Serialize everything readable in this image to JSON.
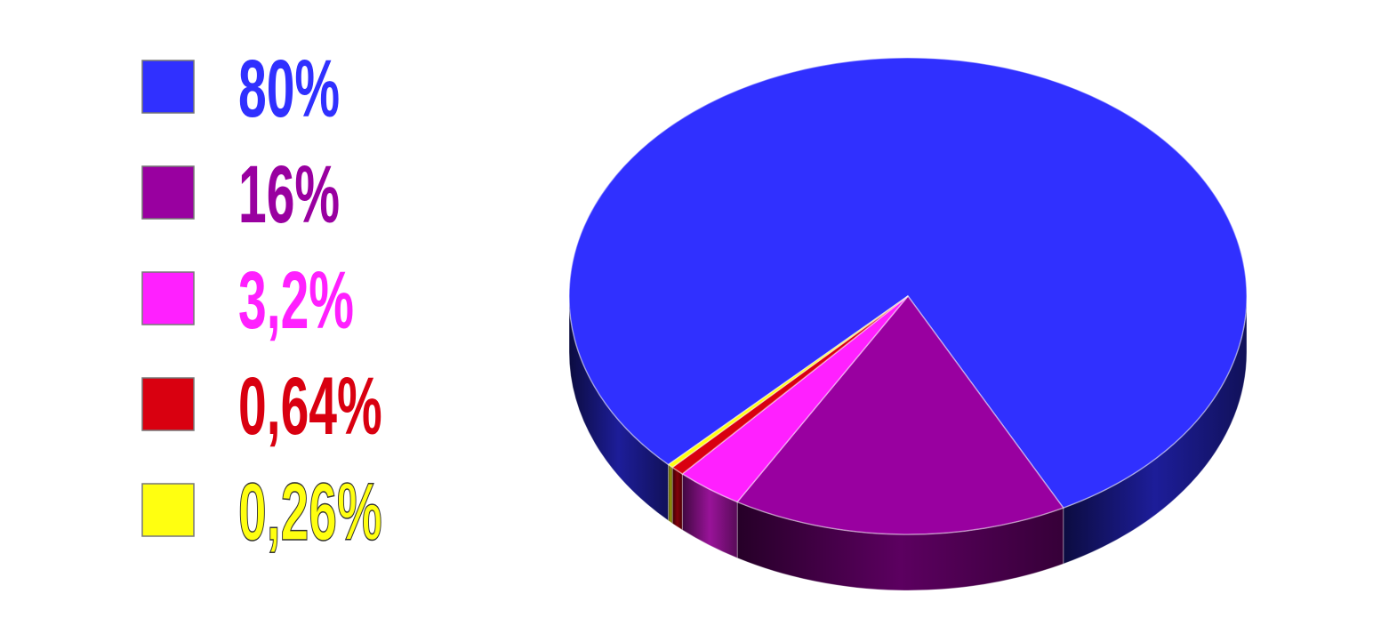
{
  "chart_data": {
    "type": "pie",
    "style": "3d",
    "title": "",
    "legend_position": "left",
    "slices": [
      {
        "label": "80%",
        "value": 80,
        "color": "#3030ff"
      },
      {
        "label": "16%",
        "value": 16,
        "color": "#9900a0"
      },
      {
        "label": "3,2%",
        "value": 3.2,
        "color": "#ff20ff"
      },
      {
        "label": "0,64%",
        "value": 0.64,
        "color": "#d90010"
      },
      {
        "label": "0,26%",
        "value": 0.26,
        "color": "#ffff10"
      }
    ]
  }
}
